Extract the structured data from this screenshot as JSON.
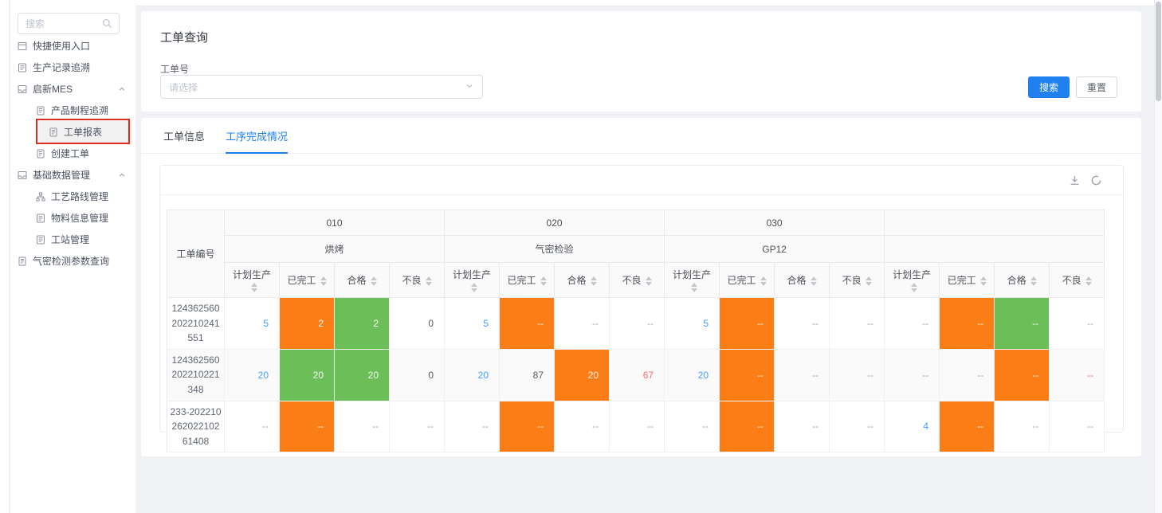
{
  "sidebar": {
    "search_placeholder": "搜索",
    "items": [
      {
        "key": "quick-entry",
        "label": "快捷使用入口",
        "level": 1,
        "icon": "window-icon"
      },
      {
        "key": "production-record-trace",
        "label": "生产记录追溯",
        "level": 1,
        "icon": "list-icon"
      },
      {
        "key": "qixin-mes",
        "label": "启新MES",
        "level": 1,
        "icon": "tray-icon",
        "expanded": true
      },
      {
        "key": "product-process-trace",
        "label": "产品制程追溯",
        "level": 2,
        "icon": "doc-icon"
      },
      {
        "key": "workorder-report",
        "label": "工单报表",
        "level": 2,
        "icon": "doc-icon",
        "selected": true,
        "annotated": true
      },
      {
        "key": "create-workorder",
        "label": "创建工单",
        "level": 2,
        "icon": "doc-icon"
      },
      {
        "key": "basic-data-mgmt",
        "label": "基础数据管理",
        "level": 1,
        "icon": "tray-icon",
        "expanded": true
      },
      {
        "key": "process-route-mgmt",
        "label": "工艺路线管理",
        "level": 2,
        "icon": "flow-icon"
      },
      {
        "key": "material-info-mgmt",
        "label": "物料信息管理",
        "level": 2,
        "icon": "list-icon"
      },
      {
        "key": "workstation-mgmt",
        "label": "工站管理",
        "level": 2,
        "icon": "list-icon"
      },
      {
        "key": "airtight-param-query",
        "label": "气密检测参数查询",
        "level": 1,
        "icon": "doc-icon"
      }
    ]
  },
  "query_card": {
    "title": "工单查询",
    "field_label": "工单号",
    "select_placeholder": "请选择",
    "search_button": "搜索",
    "reset_button": "重置"
  },
  "tabs": [
    {
      "key": "workorder-info",
      "label": "工单信息",
      "active": false
    },
    {
      "key": "process-completion",
      "label": "工序完成情况",
      "active": true
    }
  ],
  "toolbar": {
    "icons": [
      "download-icon",
      "refresh-icon"
    ]
  },
  "table": {
    "id_header": "工单编号",
    "groups": [
      {
        "code": "010",
        "name": "烘烤"
      },
      {
        "code": "020",
        "name": "气密检验"
      },
      {
        "code": "030",
        "name": "GP12"
      },
      {
        "code": "",
        "name": ""
      }
    ],
    "metrics": [
      "计划生产",
      "已完工",
      "合格",
      "不良"
    ],
    "rows": [
      {
        "id": "124362560202210241551",
        "cells": [
          {
            "v": "5",
            "c": "blue"
          },
          {
            "v": "2",
            "bg": "orange"
          },
          {
            "v": "2",
            "bg": "green"
          },
          {
            "v": "0",
            "c": "dark"
          },
          {
            "v": "5",
            "c": "blue"
          },
          {
            "v": "--",
            "bg": "orange"
          },
          {
            "v": "--",
            "c": "gray"
          },
          {
            "v": "--",
            "c": "gray"
          },
          {
            "v": "5",
            "c": "blue"
          },
          {
            "v": "--",
            "bg": "orange"
          },
          {
            "v": "--",
            "c": "gray"
          },
          {
            "v": "--",
            "c": "gray"
          },
          {
            "v": "--",
            "c": "gray"
          },
          {
            "v": "--",
            "bg": "orange"
          },
          {
            "v": "--",
            "bg": "green"
          },
          {
            "v": "--",
            "c": "gray"
          }
        ]
      },
      {
        "id": "124362560202210221348",
        "cells": [
          {
            "v": "20",
            "c": "blue"
          },
          {
            "v": "20",
            "bg": "green"
          },
          {
            "v": "20",
            "bg": "green"
          },
          {
            "v": "0",
            "c": "dark"
          },
          {
            "v": "20",
            "c": "blue"
          },
          {
            "v": "87",
            "c": "dark"
          },
          {
            "v": "20",
            "bg": "orange"
          },
          {
            "v": "67",
            "c": "red"
          },
          {
            "v": "20",
            "c": "blue"
          },
          {
            "v": "--",
            "bg": "orange"
          },
          {
            "v": "--",
            "c": "gray"
          },
          {
            "v": "--",
            "c": "gray"
          },
          {
            "v": "--",
            "c": "gray"
          },
          {
            "v": "--",
            "c": "gray"
          },
          {
            "v": "--",
            "bg": "orange"
          },
          {
            "v": "--",
            "c": "red"
          }
        ]
      },
      {
        "id": "233-20221026202210261408",
        "cells": [
          {
            "v": "--",
            "c": "gray"
          },
          {
            "v": "--",
            "bg": "orange"
          },
          {
            "v": "--",
            "c": "gray"
          },
          {
            "v": "--",
            "c": "gray"
          },
          {
            "v": "--",
            "c": "gray"
          },
          {
            "v": "--",
            "bg": "orange"
          },
          {
            "v": "--",
            "c": "gray"
          },
          {
            "v": "--",
            "c": "gray"
          },
          {
            "v": "--",
            "c": "gray"
          },
          {
            "v": "--",
            "bg": "orange"
          },
          {
            "v": "--",
            "c": "gray"
          },
          {
            "v": "--",
            "c": "gray"
          },
          {
            "v": "4",
            "c": "blue"
          },
          {
            "v": "--",
            "bg": "orange"
          },
          {
            "v": "--",
            "c": "gray"
          },
          {
            "v": "--",
            "c": "gray"
          }
        ]
      }
    ]
  },
  "colors": {
    "accent": "#2080f0",
    "orange": "#fa7d16",
    "green": "#6cbe58",
    "link_blue": "#409eff",
    "red": "#f56c6c",
    "annotation_red": "#e02b20"
  }
}
